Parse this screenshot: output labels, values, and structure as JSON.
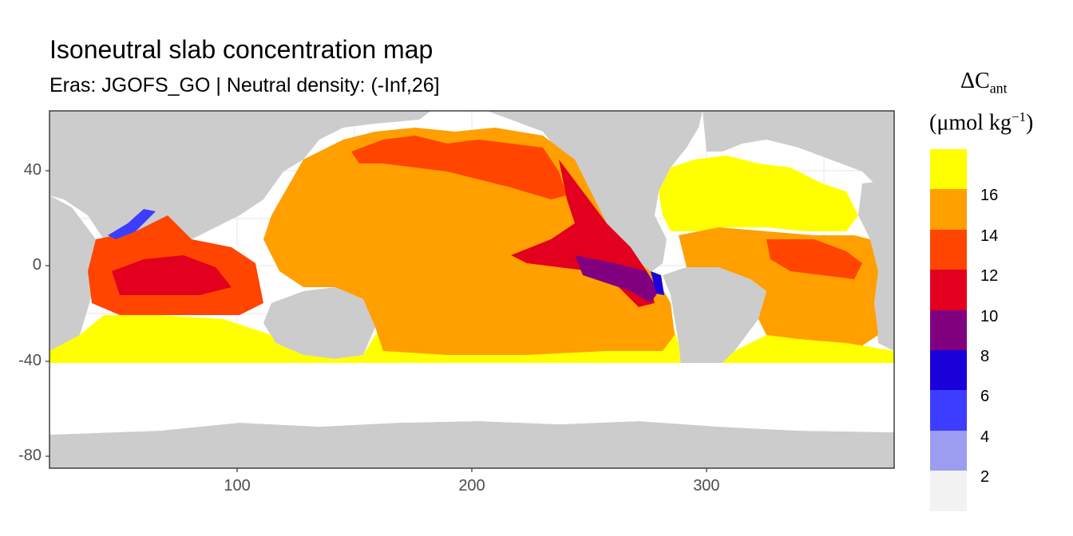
{
  "title": "Isoneutral slab concentration map",
  "subtitle": "Eras: JGOFS_GO | Neutral density: (-Inf,26]",
  "axes": {
    "x_ticks": [
      {
        "value": 100,
        "label": "100"
      },
      {
        "value": 200,
        "label": "200"
      },
      {
        "value": 300,
        "label": "300"
      }
    ],
    "y_ticks": [
      {
        "value": 40,
        "label": "40"
      },
      {
        "value": 0,
        "label": "0"
      },
      {
        "value": -40,
        "label": "-40"
      },
      {
        "value": -80,
        "label": "-80"
      }
    ],
    "xlim": [
      20,
      380
    ],
    "ylim": [
      -85,
      65
    ]
  },
  "legend": {
    "title_symbol": "ΔC",
    "title_subscript": "ant",
    "title_unit_prefix": "(μmol kg",
    "title_unit_sup": "−1",
    "title_unit_suffix": ")",
    "bins": [
      {
        "label": "2",
        "color": "#f2f2f2"
      },
      {
        "label": "4",
        "color": "#9c9cf0"
      },
      {
        "label": "6",
        "color": "#3d3dff"
      },
      {
        "label": "8",
        "color": "#1a00d9"
      },
      {
        "label": "10",
        "color": "#800080"
      },
      {
        "label": "12",
        "color": "#e3001f"
      },
      {
        "label": "14",
        "color": "#ff4500"
      },
      {
        "label": "16",
        "color": "#ff9f00"
      },
      {
        "label": "",
        "color": "#ffff00"
      }
    ]
  },
  "colors": {
    "land": "#cccccc",
    "no_data": "#ffffff",
    "grid": "#ebebeb",
    "panel_border": "#333333"
  }
}
